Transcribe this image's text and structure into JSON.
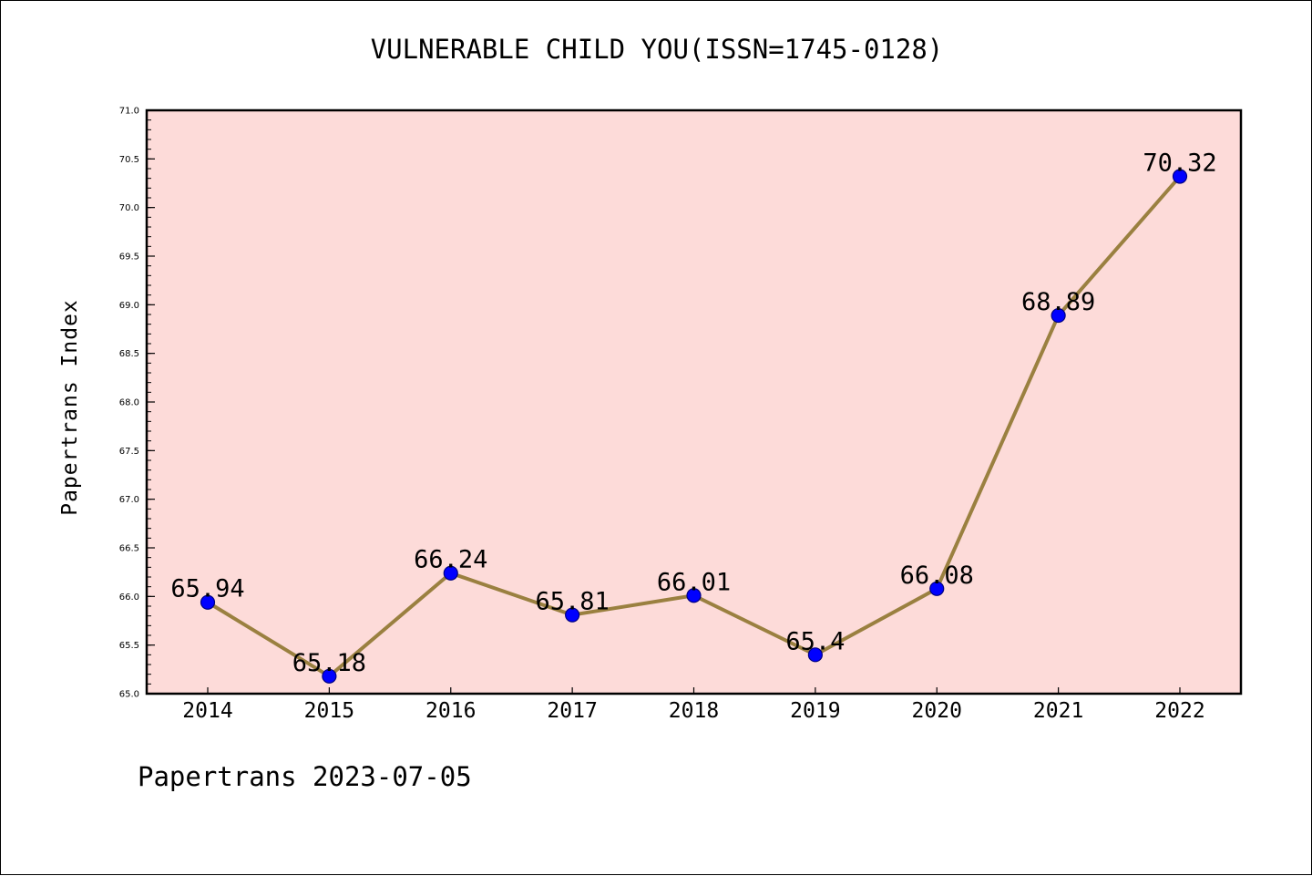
{
  "footer": {
    "text": "Papertrans 2023-07-05"
  },
  "colors": {
    "plot_background": "#FDDBD9",
    "line": "#9A8040",
    "marker_fill": "#0000FF",
    "marker_edge": "#000080"
  },
  "chart_data": {
    "type": "line",
    "title": "VULNERABLE CHILD YOU(ISSN=1745-0128)",
    "xlabel": "",
    "ylabel": "Papertrans Index",
    "categories": [
      "2014",
      "2015",
      "2016",
      "2017",
      "2018",
      "2019",
      "2020",
      "2021",
      "2022"
    ],
    "series": [
      {
        "values": [
          65.94,
          65.18,
          66.24,
          65.81,
          66.01,
          65.4,
          66.08,
          68.89,
          70.32
        ],
        "labels": [
          "65.94",
          "65.18",
          "66.24",
          "65.81",
          "66.01",
          "65.4",
          "66.08",
          "68.89",
          "70.32"
        ]
      }
    ],
    "ylim": [
      65.0,
      71.0
    ],
    "yticks": [
      "65.0",
      "65.5",
      "66.0",
      "66.5",
      "67.0",
      "67.5",
      "68.0",
      "68.5",
      "69.0",
      "69.5",
      "70.0",
      "70.5",
      "71.0"
    ],
    "grid": false,
    "legend": "none"
  }
}
